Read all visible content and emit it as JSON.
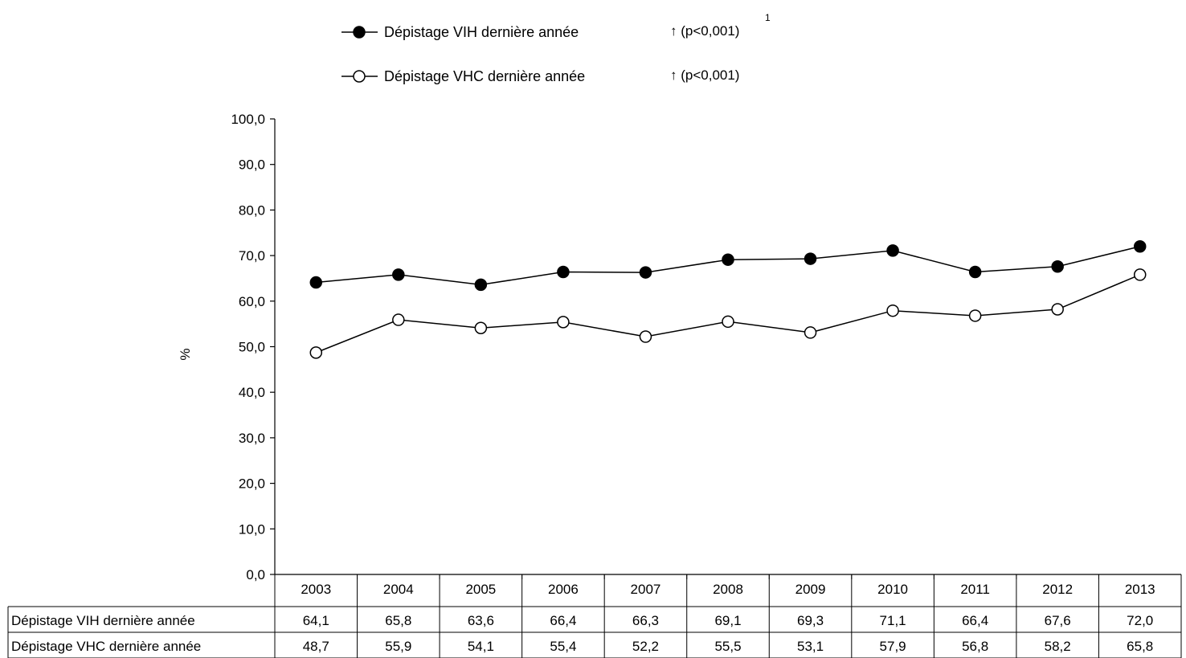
{
  "chart_data": {
    "type": "line",
    "x": [
      "2003",
      "2004",
      "2005",
      "2006",
      "2007",
      "2008",
      "2009",
      "2010",
      "2011",
      "2012",
      "2013"
    ],
    "series": [
      {
        "name": "Dépistage VIH dernière année",
        "marker": "filled-circle",
        "values": [
          64.1,
          65.8,
          63.6,
          66.4,
          66.3,
          69.1,
          69.3,
          71.1,
          66.4,
          67.6,
          72.0
        ],
        "value_labels": [
          "64,1",
          "65,8",
          "63,6",
          "66,4",
          "66,3",
          "69,1",
          "69,3",
          "71,1",
          "66,4",
          "67,6",
          "72,0"
        ],
        "trend": "↑ (p<0,001)",
        "trend_note": "1"
      },
      {
        "name": "Dépistage VHC dernière année",
        "marker": "open-circle",
        "values": [
          48.7,
          55.9,
          54.1,
          55.4,
          52.2,
          55.5,
          53.1,
          57.9,
          56.8,
          58.2,
          65.8
        ],
        "value_labels": [
          "48,7",
          "55,9",
          "54,1",
          "55,4",
          "52,2",
          "55,5",
          "53,1",
          "57,9",
          "56,8",
          "58,2",
          "65,8"
        ],
        "trend": "↑ (p<0,001)"
      }
    ],
    "ylabel": "%",
    "ylim": [
      0,
      100
    ],
    "yticks": [
      "0,0",
      "10,0",
      "20,0",
      "30,0",
      "40,0",
      "50,0",
      "60,0",
      "70,0",
      "80,0",
      "90,0",
      "100,0"
    ],
    "grid": false,
    "legend_position": "top-center",
    "data_table": true,
    "colors": {
      "line": "#000000",
      "marker_fill_filled": "#000000",
      "marker_fill_open": "#ffffff"
    }
  }
}
